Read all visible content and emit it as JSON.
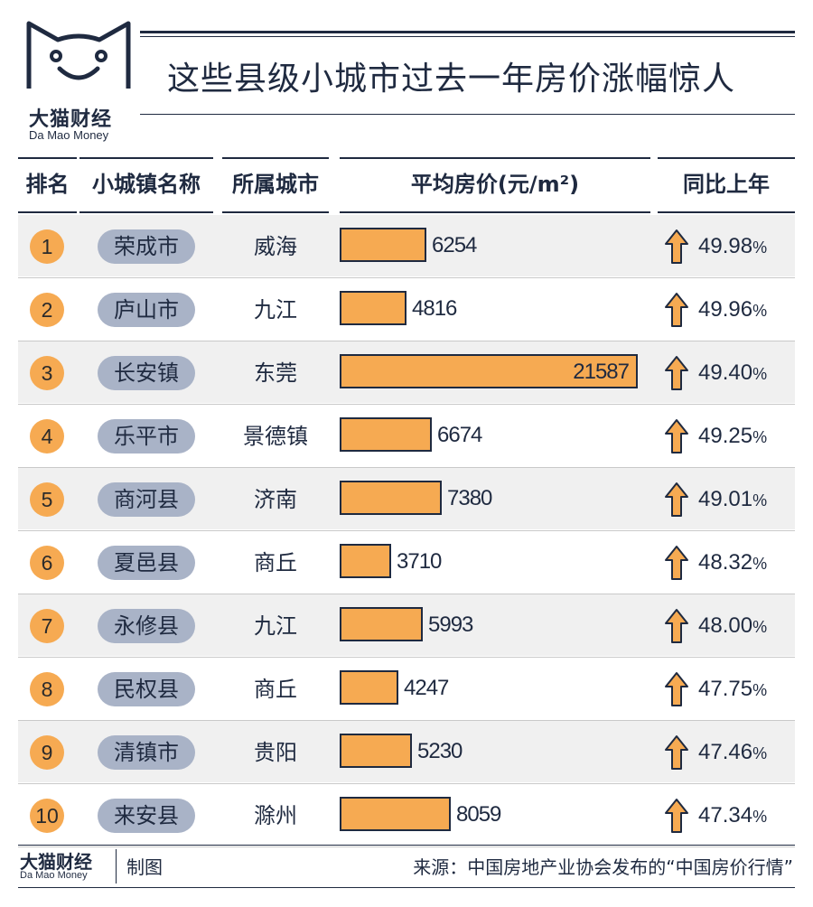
{
  "brand": {
    "name_cn": "大猫财经",
    "name_en": "Da Mao Money"
  },
  "title": "这些县级小城市过去一年房价涨幅惊人",
  "columns": {
    "rank": "排名",
    "town": "小城镇名称",
    "city": "所属城市",
    "price": "平均房价(元/m²)",
    "yoy": "同比上年"
  },
  "colors": {
    "bar_fill": "#f6aa52",
    "badge": "#f6aa52",
    "pill": "#a9b3c7",
    "ink": "#1f2a40"
  },
  "icons": {
    "growth": "up-arrow-icon"
  },
  "chart_data": {
    "type": "table",
    "columns": [
      "排名",
      "小城镇名称",
      "所属城市",
      "平均房价(元/m²)",
      "同比上年"
    ],
    "price_max": 21587,
    "rows": [
      {
        "rank": "1",
        "town": "荣成市",
        "city": "威海",
        "price": 6254,
        "price_label": "6254",
        "yoy": "49.98"
      },
      {
        "rank": "2",
        "town": "庐山市",
        "city": "九江",
        "price": 4816,
        "price_label": "4816",
        "yoy": "49.96"
      },
      {
        "rank": "3",
        "town": "长安镇",
        "city": "东莞",
        "price": 21587,
        "price_label": "21587",
        "yoy": "49.40"
      },
      {
        "rank": "4",
        "town": "乐平市",
        "city": "景德镇",
        "price": 6674,
        "price_label": "6674",
        "yoy": "49.25"
      },
      {
        "rank": "5",
        "town": "商河县",
        "city": "济南",
        "price": 7380,
        "price_label": "7380",
        "yoy": "49.01"
      },
      {
        "rank": "6",
        "town": "夏邑县",
        "city": "商丘",
        "price": 3710,
        "price_label": "3710",
        "yoy": "48.32"
      },
      {
        "rank": "7",
        "town": "永修县",
        "city": "九江",
        "price": 5993,
        "price_label": "5993",
        "yoy": "48.00"
      },
      {
        "rank": "8",
        "town": "民权县",
        "city": "商丘",
        "price": 4247,
        "price_label": "4247",
        "yoy": "47.75"
      },
      {
        "rank": "9",
        "town": "清镇市",
        "city": "贵阳",
        "price": 5230,
        "price_label": "5230",
        "yoy": "47.46"
      },
      {
        "rank": "10",
        "town": "来安县",
        "city": "滁州",
        "price": 8059,
        "price_label": "8059",
        "yoy": "47.34"
      }
    ],
    "pct_symbol": "%"
  },
  "footer": {
    "made": "制图",
    "source": "来源：中国房地产业协会发布的“中国房价行情”"
  }
}
